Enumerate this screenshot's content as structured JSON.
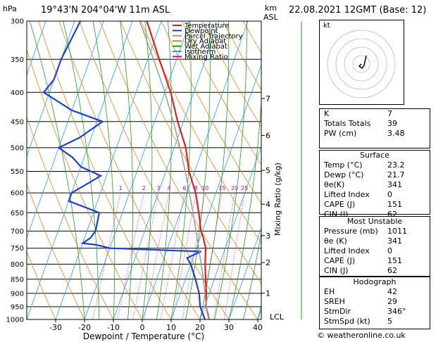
{
  "header": {
    "location": "19°43'N  204°04'W  11m  ASL",
    "date": "22.08.2021  12GMT  (Base: 12)",
    "hpa_label": "hPa",
    "km_label": "km",
    "asl_label": "ASL"
  },
  "axes": {
    "xlabel": "Dewpoint / Temperature (°C)",
    "mixing_label": "Mixing Ratio (g/kg)",
    "x_ticks": [
      "-30",
      "-20",
      "-10",
      "0",
      "10",
      "20",
      "30",
      "40"
    ],
    "p_ticks": [
      "300",
      "350",
      "400",
      "450",
      "500",
      "550",
      "600",
      "650",
      "700",
      "750",
      "800",
      "850",
      "900",
      "950",
      "1000"
    ],
    "km_ticks": [
      "7",
      "6",
      "5",
      "4",
      "3",
      "2",
      "1"
    ],
    "lcl_label": "LCL",
    "mixing_ticks": [
      "1",
      "2",
      "3",
      "4",
      "6",
      "8",
      "10",
      "15",
      "20",
      "25"
    ]
  },
  "legend": {
    "items": [
      {
        "label": "Temperature",
        "color": "#e02020"
      },
      {
        "label": "Dewpoint",
        "color": "#1d3fd6"
      },
      {
        "label": "Parcel Trajectory",
        "color": "#9a9a9a"
      },
      {
        "label": "Dry Adiabat",
        "color": "#e8860c"
      },
      {
        "label": "Wet Adiabat",
        "color": "#19a319"
      },
      {
        "label": "Isotherm",
        "color": "#1ea4dc"
      },
      {
        "label": "Mixing Ratio",
        "color": "#d3009a"
      }
    ]
  },
  "chart_data": {
    "type": "line",
    "title": "",
    "xlabel": "Dewpoint / Temperature (°C)",
    "ylabel": "hPa",
    "xlim": [
      -35,
      40
    ],
    "ylim": [
      1000,
      300
    ],
    "y_scale": "log",
    "skew": "temperature axis skewed",
    "series": [
      {
        "name": "Temperature",
        "color": "#e02020",
        "points": [
          [
            1000,
            23.2
          ],
          [
            950,
            20.5
          ],
          [
            900,
            19.0
          ],
          [
            850,
            17.0
          ],
          [
            800,
            15.0
          ],
          [
            750,
            13.2
          ],
          [
            720,
            11.2
          ],
          [
            700,
            9.5
          ],
          [
            650,
            6.5
          ],
          [
            600,
            3.0
          ],
          [
            550,
            -2.0
          ],
          [
            500,
            -6.0
          ],
          [
            450,
            -12.0
          ],
          [
            400,
            -18.0
          ],
          [
            350,
            -26.0
          ],
          [
            300,
            -35.0
          ]
        ]
      },
      {
        "name": "Dewpoint",
        "color": "#1d3fd6",
        "points": [
          [
            1000,
            21.7
          ],
          [
            950,
            18.5
          ],
          [
            900,
            16.5
          ],
          [
            850,
            13.5
          ],
          [
            800,
            10.0
          ],
          [
            780,
            8.0
          ],
          [
            760,
            12.0
          ],
          [
            750,
            -20.0
          ],
          [
            740,
            -25.0
          ],
          [
            735,
            -30.0
          ],
          [
            720,
            -28.0
          ],
          [
            700,
            -27.0
          ],
          [
            650,
            -28.0
          ],
          [
            620,
            -40.0
          ],
          [
            600,
            -40.0
          ],
          [
            580,
            -36.0
          ],
          [
            560,
            -32.0
          ],
          [
            540,
            -40.0
          ],
          [
            520,
            -44.0
          ],
          [
            500,
            -50.0
          ],
          [
            480,
            -44.0
          ],
          [
            450,
            -38.0
          ],
          [
            430,
            -50.0
          ],
          [
            400,
            -62.0
          ],
          [
            380,
            -60.0
          ],
          [
            350,
            -60.0
          ],
          [
            300,
            -58.0
          ]
        ]
      },
      {
        "name": "Parcel Trajectory",
        "color": "#9a9a9a",
        "points": [
          [
            1000,
            23.2
          ],
          [
            980,
            22.0
          ],
          [
            950,
            20.6
          ],
          [
            900,
            18.5
          ],
          [
            850,
            16.2
          ],
          [
            800,
            13.6
          ],
          [
            750,
            10.8
          ],
          [
            700,
            7.8
          ],
          [
            650,
            4.5
          ],
          [
            600,
            0.8
          ],
          [
            550,
            -3.3
          ],
          [
            500,
            -8.0
          ],
          [
            450,
            -13.5
          ],
          [
            400,
            -20.0
          ],
          [
            350,
            -28.0
          ],
          [
            300,
            -37.5
          ]
        ]
      }
    ]
  },
  "hodograph": {
    "label": "kt"
  },
  "indices": [
    {
      "label": "K",
      "value": "7"
    },
    {
      "label": "Totals Totals",
      "value": "39"
    },
    {
      "label": "PW (cm)",
      "value": "3.48"
    }
  ],
  "surface": {
    "title": "Surface",
    "rows": [
      {
        "label": "Temp (°C)",
        "value": "23.2"
      },
      {
        "label": "Dewp (°C)",
        "value": "21.7"
      },
      {
        "label": "θe(K)",
        "value": "341"
      },
      {
        "label": "Lifted Index",
        "value": "0"
      },
      {
        "label": "CAPE (J)",
        "value": "151"
      },
      {
        "label": "CIN (J)",
        "value": "62"
      }
    ]
  },
  "most_unstable": {
    "title": "Most Unstable",
    "rows": [
      {
        "label": "Pressure (mb)",
        "value": "1011"
      },
      {
        "label": "θe (K)",
        "value": "341"
      },
      {
        "label": "Lifted Index",
        "value": "0"
      },
      {
        "label": "CAPE (J)",
        "value": "151"
      },
      {
        "label": "CIN (J)",
        "value": "62"
      }
    ]
  },
  "hodograph_panel": {
    "title": "Hodograph",
    "rows": [
      {
        "label": "EH",
        "value": "42"
      },
      {
        "label": "SREH",
        "value": "29"
      },
      {
        "label": "StmDir",
        "value": "346°"
      },
      {
        "label": "StmSpd (kt)",
        "value": "5"
      }
    ]
  },
  "footer": "© weatheronline.co.uk"
}
